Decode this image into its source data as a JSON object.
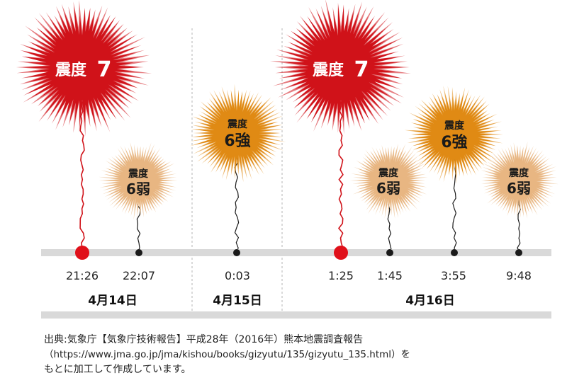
{
  "timeline": {
    "events": [
      {
        "time": "21:26",
        "date_group": "4月14日",
        "intensity_top": "震度",
        "intensity_bottom": "7",
        "level": "7",
        "color": "#d01219"
      },
      {
        "time": "22:07",
        "date_group": "4月14日",
        "intensity_top": "震度",
        "intensity_bottom": "6弱",
        "level": "6-",
        "color": "#e8b682"
      },
      {
        "time": "0:03",
        "date_group": "4月15日",
        "intensity_top": "震度",
        "intensity_bottom": "6強",
        "level": "6+",
        "color": "#e08a14"
      },
      {
        "time": "1:25",
        "date_group": "4月16日",
        "intensity_top": "震度",
        "intensity_bottom": "7",
        "level": "7",
        "color": "#d01219"
      },
      {
        "time": "1:45",
        "date_group": "4月16日",
        "intensity_top": "震度",
        "intensity_bottom": "6弱",
        "level": "6-",
        "color": "#e8b682"
      },
      {
        "time": "3:55",
        "date_group": "4月16日",
        "intensity_top": "震度",
        "intensity_bottom": "6強",
        "level": "6+",
        "color": "#e08a14"
      },
      {
        "time": "9:48",
        "date_group": "4月16日",
        "intensity_top": "震度",
        "intensity_bottom": "6弱",
        "level": "6-",
        "color": "#e8b682"
      }
    ],
    "dates": [
      "4月14日",
      "4月15日",
      "4月16日"
    ],
    "bar_color": "#d9d9d9",
    "major_dot_color": "#e0101a",
    "minor_dot_color": "#1a1a1a"
  },
  "source": {
    "line1": "出典:気象庁【気象庁技術報告】平成28年（2016年）熊本地震調査報告",
    "line2": "（https://www.jma.go.jp/jma/kishou/books/gizyutu/135/gizyutu_135.html）を",
    "line3": "もとに加工して作成しています。"
  }
}
